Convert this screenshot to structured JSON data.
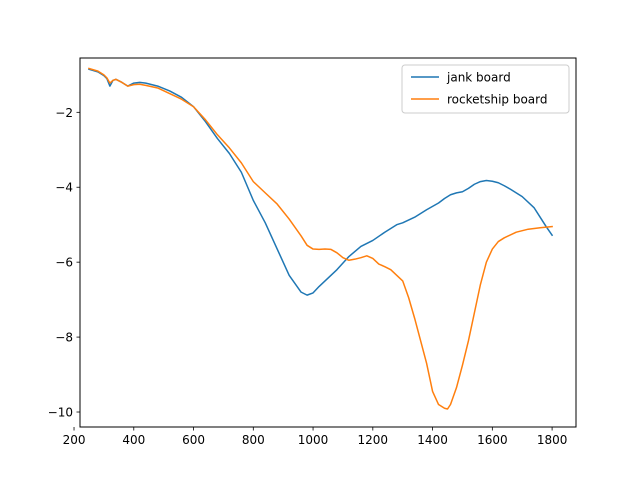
{
  "chart_data": {
    "type": "line",
    "title": "",
    "xlabel": "",
    "ylabel": "",
    "xlim": [
      220,
      1880
    ],
    "ylim": [
      -10.4,
      -0.55
    ],
    "xticks": [
      200,
      400,
      600,
      800,
      1000,
      1200,
      1400,
      1600,
      1800
    ],
    "yticks": [
      -10,
      -8,
      -6,
      -4,
      -2
    ],
    "grid": false,
    "legend_position": "top-right",
    "series": [
      {
        "name": "jank board",
        "color": "#1f77b4",
        "x": [
          250,
          280,
          300,
          310,
          320,
          330,
          340,
          360,
          380,
          400,
          420,
          440,
          480,
          520,
          560,
          600,
          640,
          680,
          720,
          760,
          800,
          840,
          880,
          920,
          960,
          980,
          1000,
          1020,
          1040,
          1080,
          1120,
          1160,
          1200,
          1240,
          1280,
          1300,
          1340,
          1380,
          1420,
          1440,
          1460,
          1480,
          1500,
          1520,
          1540,
          1560,
          1580,
          1600,
          1620,
          1640,
          1660,
          1700,
          1740,
          1760,
          1780,
          1800
        ],
        "y": [
          -0.85,
          -0.92,
          -1.02,
          -1.1,
          -1.3,
          -1.15,
          -1.12,
          -1.2,
          -1.3,
          -1.22,
          -1.2,
          -1.22,
          -1.3,
          -1.43,
          -1.6,
          -1.85,
          -2.25,
          -2.7,
          -3.1,
          -3.6,
          -4.35,
          -4.95,
          -5.65,
          -6.35,
          -6.8,
          -6.88,
          -6.82,
          -6.65,
          -6.5,
          -6.2,
          -5.85,
          -5.58,
          -5.42,
          -5.2,
          -5.0,
          -4.95,
          -4.8,
          -4.6,
          -4.42,
          -4.3,
          -4.2,
          -4.15,
          -4.12,
          -4.03,
          -3.92,
          -3.85,
          -3.82,
          -3.84,
          -3.88,
          -3.96,
          -4.05,
          -4.25,
          -4.55,
          -4.8,
          -5.05,
          -5.28
        ]
      },
      {
        "name": "rocketship board",
        "color": "#ff7f0e",
        "x": [
          250,
          280,
          300,
          310,
          320,
          330,
          340,
          360,
          380,
          400,
          420,
          440,
          480,
          520,
          560,
          600,
          640,
          680,
          720,
          760,
          800,
          840,
          880,
          920,
          960,
          980,
          1000,
          1020,
          1040,
          1060,
          1080,
          1100,
          1120,
          1140,
          1160,
          1180,
          1200,
          1220,
          1240,
          1260,
          1280,
          1300,
          1320,
          1340,
          1360,
          1380,
          1400,
          1420,
          1440,
          1450,
          1460,
          1480,
          1500,
          1520,
          1540,
          1560,
          1580,
          1600,
          1620,
          1640,
          1680,
          1720,
          1760,
          1800
        ],
        "y": [
          -0.83,
          -0.9,
          -1.0,
          -1.08,
          -1.22,
          -1.15,
          -1.12,
          -1.2,
          -1.3,
          -1.26,
          -1.25,
          -1.28,
          -1.35,
          -1.5,
          -1.65,
          -1.85,
          -2.2,
          -2.6,
          -2.95,
          -3.35,
          -3.85,
          -4.15,
          -4.45,
          -4.85,
          -5.3,
          -5.55,
          -5.65,
          -5.66,
          -5.65,
          -5.66,
          -5.75,
          -5.88,
          -5.95,
          -5.92,
          -5.88,
          -5.83,
          -5.9,
          -6.05,
          -6.12,
          -6.2,
          -6.35,
          -6.5,
          -6.95,
          -7.5,
          -8.1,
          -8.7,
          -9.45,
          -9.8,
          -9.9,
          -9.92,
          -9.8,
          -9.35,
          -8.75,
          -8.1,
          -7.35,
          -6.6,
          -6.0,
          -5.65,
          -5.45,
          -5.35,
          -5.2,
          -5.12,
          -5.08,
          -5.05
        ]
      }
    ]
  }
}
